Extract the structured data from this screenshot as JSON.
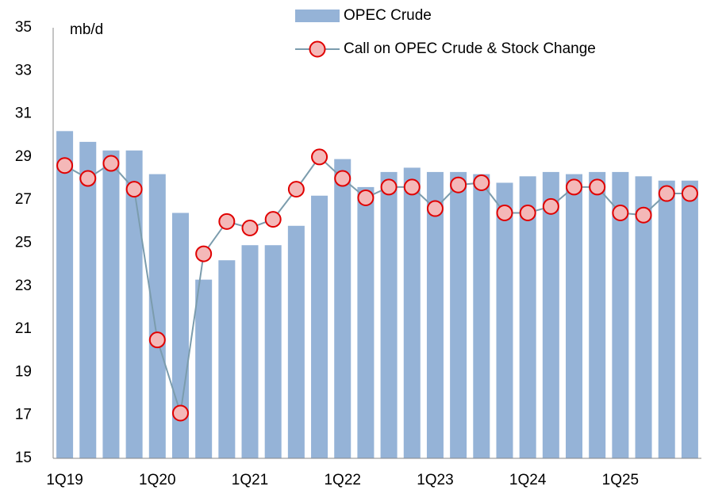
{
  "chart_data": {
    "type": "combo",
    "annotation": "mb/d",
    "categories": [
      "1Q19",
      null,
      null,
      null,
      "1Q20",
      null,
      null,
      null,
      "1Q21",
      null,
      null,
      null,
      "1Q22",
      null,
      null,
      null,
      "1Q23",
      null,
      null,
      null,
      "1Q24",
      null,
      null,
      null,
      "1Q25",
      null,
      null,
      null
    ],
    "series": [
      {
        "name": "OPEC Crude",
        "type": "bar",
        "color": "#95b3d7",
        "values": [
          30.2,
          29.7,
          29.3,
          29.3,
          28.2,
          26.4,
          23.3,
          24.2,
          24.9,
          24.9,
          25.8,
          27.2,
          28.9,
          27.6,
          28.3,
          28.5,
          28.3,
          28.3,
          28.2,
          27.8,
          28.1,
          28.3,
          28.2,
          28.3,
          28.3,
          28.1,
          27.9,
          27.9
        ]
      },
      {
        "name": "Call on OPEC Crude & Stock Change",
        "type": "line",
        "color": "#7b9cad",
        "marker_fill": "#f4b8b8",
        "marker_edge": "#e00000",
        "values": [
          28.6,
          28.0,
          28.7,
          27.5,
          20.5,
          17.1,
          24.5,
          26.0,
          25.7,
          26.1,
          27.5,
          29.0,
          28.0,
          27.1,
          27.6,
          27.6,
          26.6,
          27.7,
          27.8,
          26.4,
          26.4,
          26.7,
          27.6,
          27.6,
          26.4,
          26.3,
          27.3,
          27.3
        ]
      }
    ],
    "ylim": [
      15,
      35
    ],
    "yticks": [
      15,
      17,
      19,
      21,
      23,
      25,
      27,
      29,
      31,
      33,
      35
    ],
    "grid": false,
    "legend": "top"
  }
}
